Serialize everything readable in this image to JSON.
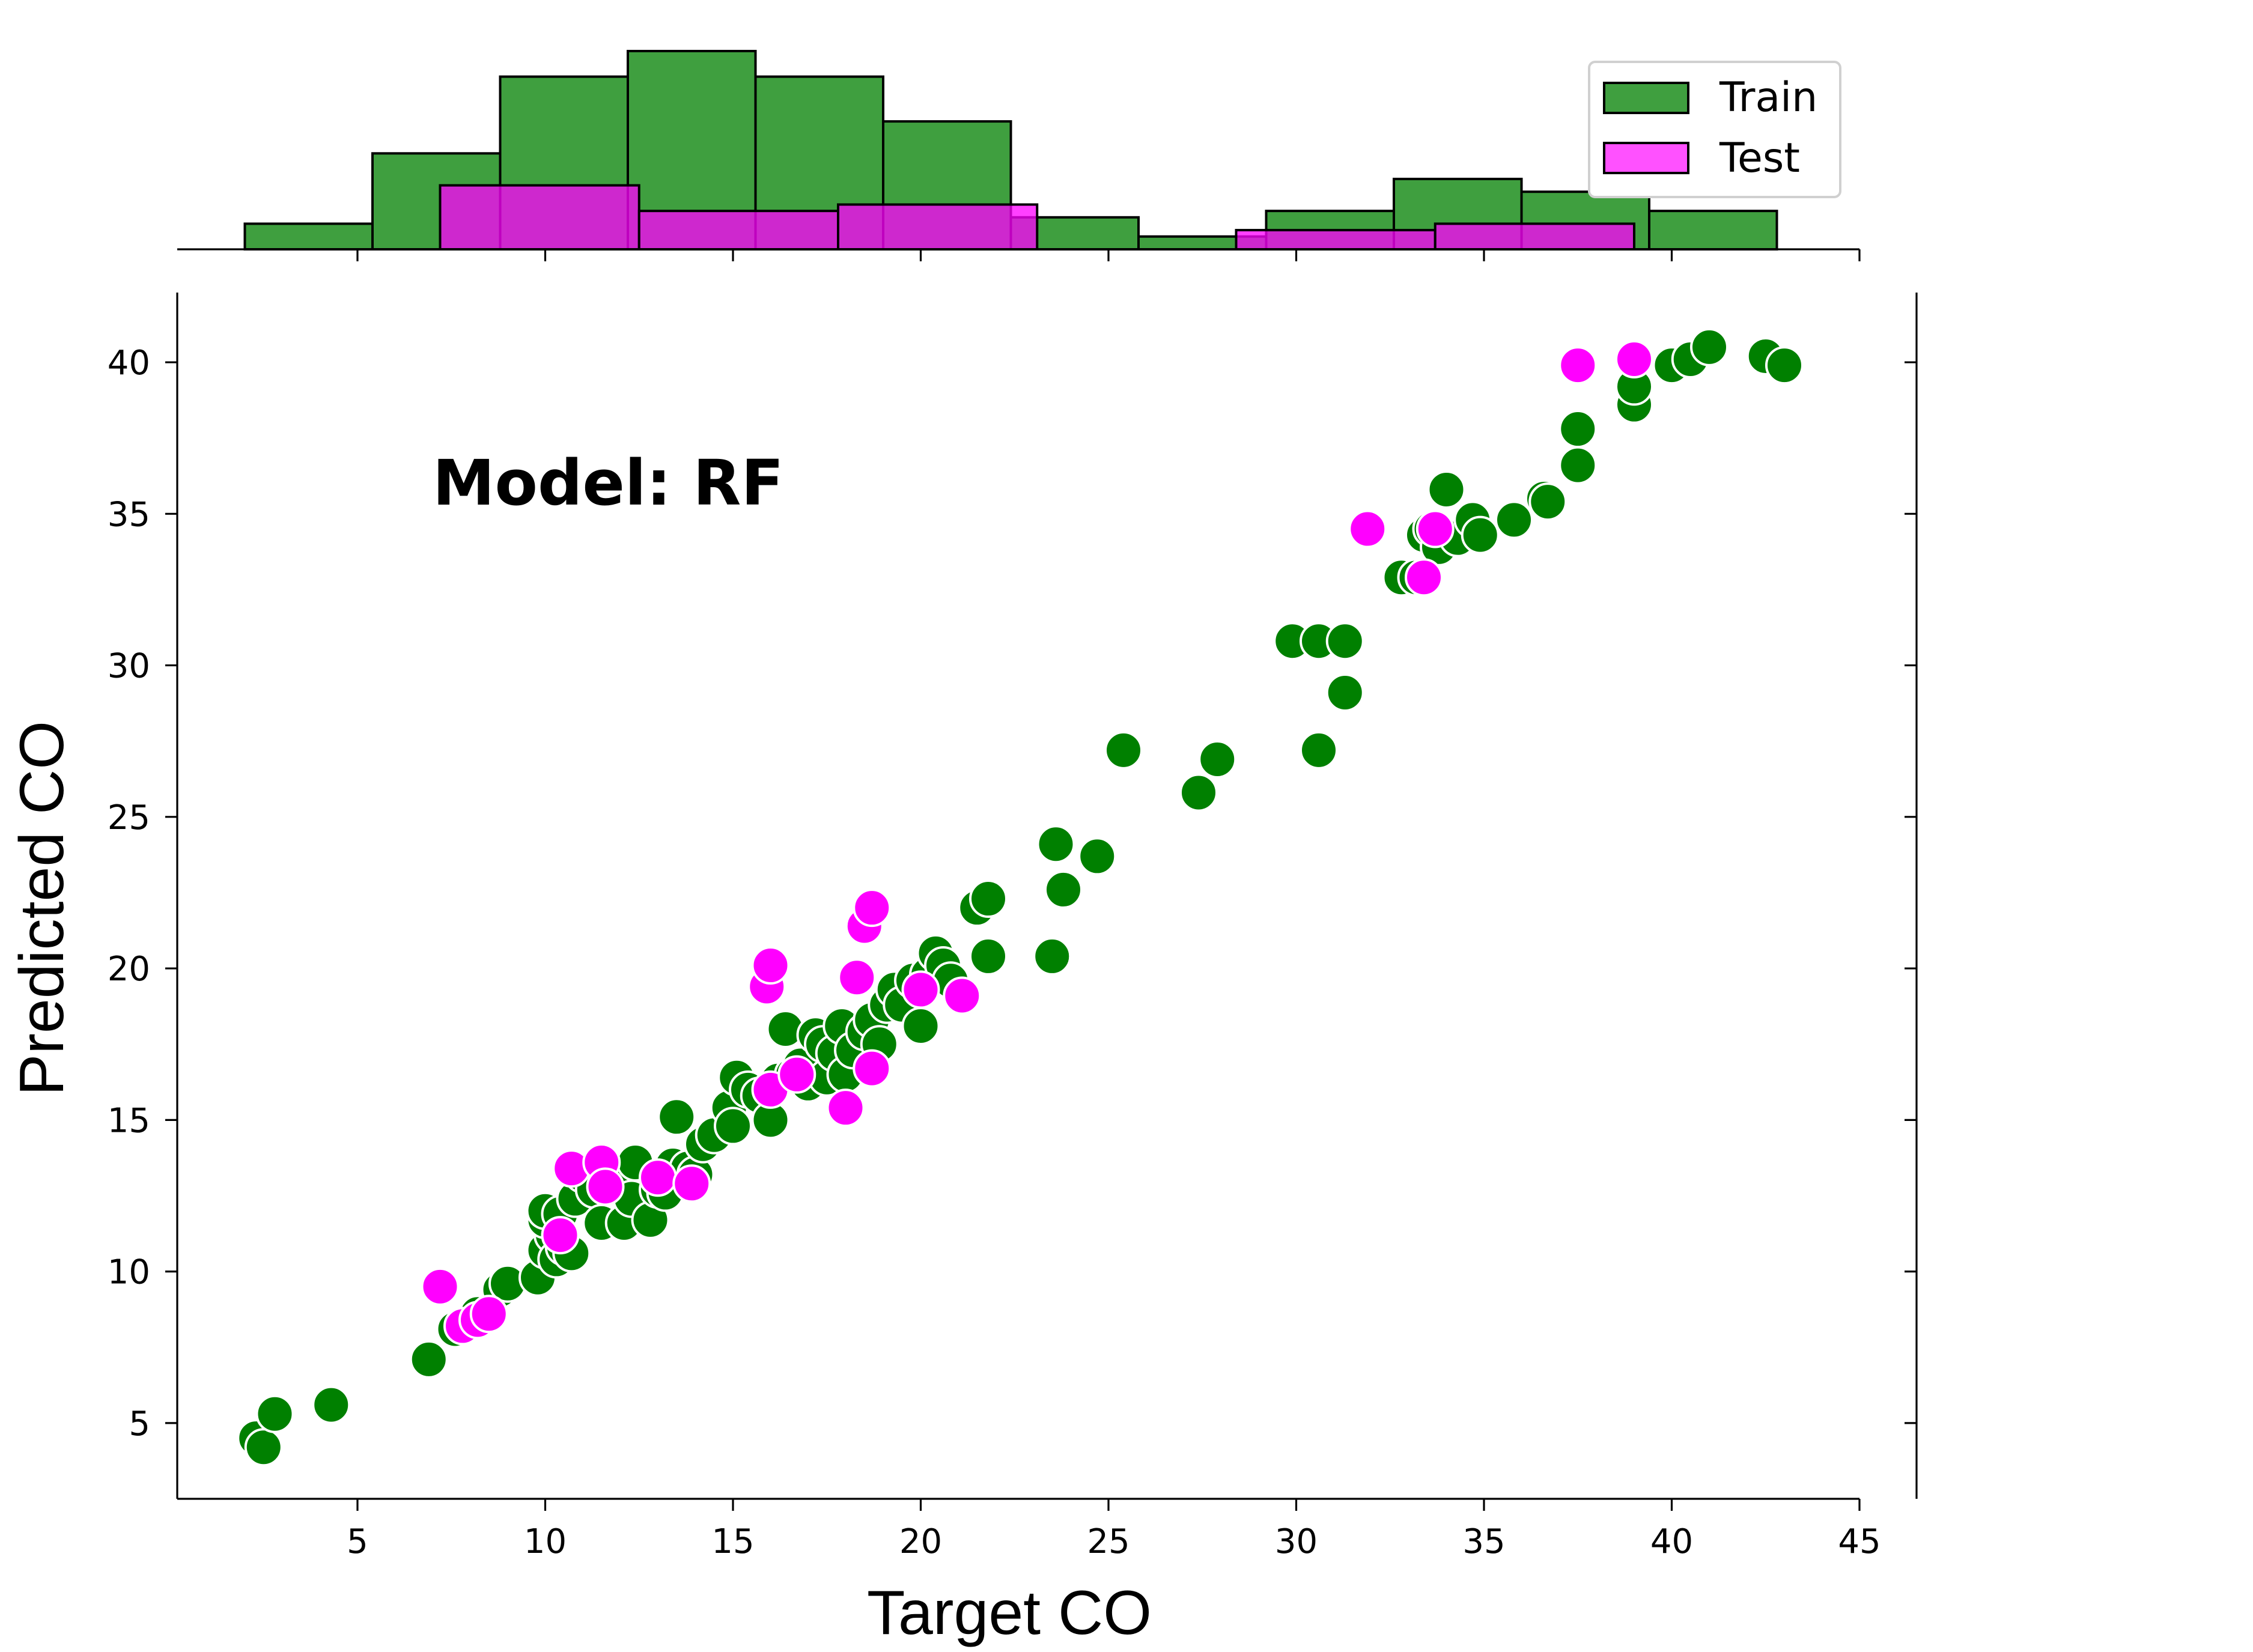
{
  "chart_data": {
    "type": "scatter",
    "annotation": "Model: RF",
    "xlabel": "Target CO",
    "ylabel": "Predicted CO",
    "xlim": [
      0.2,
      45
    ],
    "ylim": [
      2.5,
      42.3
    ],
    "xticks": [
      5,
      10,
      15,
      20,
      25,
      30,
      35,
      40,
      45
    ],
    "yticks": [
      5,
      10,
      15,
      20,
      25,
      30,
      35,
      40
    ],
    "colors": {
      "train": "#008000",
      "test": "#ff00ff",
      "train_hist": "#3f9f3f",
      "test_hist": "#d41fd4"
    },
    "legend": {
      "placement": "top-right",
      "entries": [
        "Train",
        "Test"
      ]
    },
    "histogram": {
      "train": {
        "bins": [
          [
            2.0,
            5.4,
            4
          ],
          [
            5.4,
            8.8,
            15
          ],
          [
            8.8,
            12.2,
            27
          ],
          [
            12.2,
            15.6,
            31
          ],
          [
            15.6,
            19.0,
            27
          ],
          [
            19.0,
            22.4,
            20
          ],
          [
            22.4,
            25.8,
            5
          ],
          [
            25.8,
            29.2,
            2
          ],
          [
            29.2,
            32.6,
            6
          ],
          [
            32.6,
            36.0,
            11
          ],
          [
            36.0,
            39.4,
            9
          ],
          [
            39.4,
            42.8,
            6
          ]
        ]
      },
      "test": {
        "bins": [
          [
            7.2,
            12.5,
            10
          ],
          [
            12.5,
            17.8,
            6
          ],
          [
            17.8,
            23.1,
            7
          ],
          [
            23.1,
            28.4,
            0
          ],
          [
            28.4,
            33.7,
            3
          ],
          [
            33.7,
            39.0,
            4
          ]
        ]
      }
    },
    "series": [
      {
        "name": "Train",
        "points": [
          [
            2.3,
            4.5
          ],
          [
            2.5,
            4.2
          ],
          [
            2.8,
            5.3
          ],
          [
            4.3,
            5.6
          ],
          [
            6.9,
            7.1
          ],
          [
            7.6,
            8.1
          ],
          [
            8.2,
            8.6
          ],
          [
            8.8,
            9.4
          ],
          [
            9.0,
            9.6
          ],
          [
            9.8,
            9.8
          ],
          [
            10.0,
            10.7
          ],
          [
            10.2,
            11.2
          ],
          [
            10.3,
            10.4
          ],
          [
            10.5,
            10.8
          ],
          [
            10.7,
            10.6
          ],
          [
            10.0,
            11.7
          ],
          [
            10.0,
            12.0
          ],
          [
            10.4,
            11.9
          ],
          [
            10.8,
            12.4
          ],
          [
            11.0,
            13.2
          ],
          [
            11.3,
            12.7
          ],
          [
            11.5,
            11.6
          ],
          [
            11.8,
            12.9
          ],
          [
            12.1,
            11.6
          ],
          [
            12.3,
            12.4
          ],
          [
            12.4,
            13.6
          ],
          [
            12.8,
            11.7
          ],
          [
            13.0,
            12.7
          ],
          [
            13.2,
            12.6
          ],
          [
            13.4,
            13.5
          ],
          [
            13.5,
            15.1
          ],
          [
            13.8,
            13.4
          ],
          [
            14.0,
            13.2
          ],
          [
            14.2,
            14.2
          ],
          [
            14.5,
            14.5
          ],
          [
            14.9,
            15.4
          ],
          [
            15.0,
            14.8
          ],
          [
            15.1,
            16.4
          ],
          [
            15.4,
            16.0
          ],
          [
            15.7,
            15.8
          ],
          [
            16.0,
            15.0
          ],
          [
            16.2,
            16.3
          ],
          [
            16.4,
            18.0
          ],
          [
            16.6,
            16.5
          ],
          [
            16.8,
            16.8
          ],
          [
            17.0,
            16.2
          ],
          [
            17.2,
            17.8
          ],
          [
            17.4,
            17.5
          ],
          [
            17.5,
            16.4
          ],
          [
            17.7,
            17.2
          ],
          [
            17.9,
            18.1
          ],
          [
            18.0,
            16.5
          ],
          [
            18.2,
            17.3
          ],
          [
            18.5,
            17.9
          ],
          [
            18.7,
            18.3
          ],
          [
            18.9,
            17.5
          ],
          [
            19.1,
            18.8
          ],
          [
            19.3,
            19.3
          ],
          [
            19.5,
            18.8
          ],
          [
            19.8,
            19.6
          ],
          [
            20.0,
            18.1
          ],
          [
            20.2,
            19.8
          ],
          [
            20.4,
            20.5
          ],
          [
            20.6,
            20.1
          ],
          [
            20.8,
            19.6
          ],
          [
            21.5,
            22.0
          ],
          [
            21.8,
            22.3
          ],
          [
            21.8,
            20.4
          ],
          [
            23.5,
            20.4
          ],
          [
            23.6,
            24.1
          ],
          [
            23.8,
            22.6
          ],
          [
            24.7,
            23.7
          ],
          [
            25.4,
            27.2
          ],
          [
            27.4,
            25.8
          ],
          [
            27.9,
            26.9
          ],
          [
            29.9,
            30.8
          ],
          [
            30.6,
            30.8
          ],
          [
            30.6,
            27.2
          ],
          [
            31.3,
            30.8
          ],
          [
            31.3,
            29.1
          ],
          [
            32.8,
            32.9
          ],
          [
            33.2,
            32.9
          ],
          [
            33.4,
            34.3
          ],
          [
            33.6,
            34.5
          ],
          [
            33.8,
            33.9
          ],
          [
            34.0,
            35.8
          ],
          [
            34.3,
            34.2
          ],
          [
            34.7,
            34.8
          ],
          [
            34.9,
            34.3
          ],
          [
            35.8,
            34.8
          ],
          [
            36.6,
            35.5
          ],
          [
            36.7,
            35.4
          ],
          [
            37.5,
            36.6
          ],
          [
            37.5,
            37.8
          ],
          [
            39.0,
            38.6
          ],
          [
            39.0,
            39.2
          ],
          [
            40.0,
            39.9
          ],
          [
            40.5,
            40.1
          ],
          [
            41.0,
            40.5
          ],
          [
            42.5,
            40.2
          ],
          [
            43.0,
            39.9
          ]
        ]
      },
      {
        "name": "Test",
        "points": [
          [
            7.2,
            9.5
          ],
          [
            7.8,
            8.2
          ],
          [
            8.2,
            8.4
          ],
          [
            8.5,
            8.6
          ],
          [
            10.4,
            11.2
          ],
          [
            10.7,
            13.4
          ],
          [
            11.5,
            13.6
          ],
          [
            11.6,
            12.8
          ],
          [
            13.0,
            13.1
          ],
          [
            13.9,
            12.9
          ],
          [
            15.9,
            19.4
          ],
          [
            16.0,
            20.1
          ],
          [
            16.0,
            16.0
          ],
          [
            16.7,
            16.5
          ],
          [
            18.0,
            15.4
          ],
          [
            18.3,
            19.7
          ],
          [
            18.5,
            21.4
          ],
          [
            18.7,
            22.0
          ],
          [
            18.7,
            16.7
          ],
          [
            20.0,
            19.3
          ],
          [
            21.1,
            19.1
          ],
          [
            31.9,
            34.5
          ],
          [
            33.4,
            32.9
          ],
          [
            33.7,
            34.5
          ],
          [
            37.5,
            39.9
          ],
          [
            39.0,
            40.1
          ]
        ]
      }
    ]
  }
}
